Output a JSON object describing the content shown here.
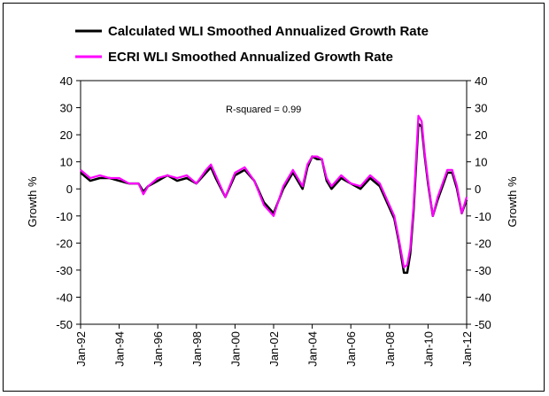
{
  "chart_data": {
    "type": "line",
    "title": "",
    "ylabel_left": "Growth %",
    "ylabel_right": "Growth %",
    "ylim": [
      -50,
      40
    ],
    "yticks": [
      -50,
      -40,
      -30,
      -20,
      -10,
      0,
      10,
      20,
      30,
      40
    ],
    "xlim": [
      1992.0,
      2012.0
    ],
    "xticks": [
      {
        "value": 1992,
        "label": "Jan-92"
      },
      {
        "value": 1994,
        "label": "Jan-94"
      },
      {
        "value": 1996,
        "label": "Jan-96"
      },
      {
        "value": 1998,
        "label": "Jan-98"
      },
      {
        "value": 2000,
        "label": "Jan-00"
      },
      {
        "value": 2002,
        "label": "Jan-02"
      },
      {
        "value": 2004,
        "label": "Jan-04"
      },
      {
        "value": 2006,
        "label": "Jan-06"
      },
      {
        "value": 2008,
        "label": "Jan-08"
      },
      {
        "value": 2010,
        "label": "Jan-10"
      },
      {
        "value": 2012,
        "label": "Jan-12"
      }
    ],
    "annotation": "R-squared = 0.99",
    "legend_placement": "top",
    "grid": false,
    "series": [
      {
        "name": "Calculated WLI Smoothed Annualized Growth Rate",
        "color": "#000000",
        "x": [
          1992.0,
          1992.5,
          1993.0,
          1993.5,
          1994.0,
          1994.5,
          1995.0,
          1995.25,
          1995.5,
          1996.0,
          1996.5,
          1997.0,
          1997.5,
          1998.0,
          1998.5,
          1998.75,
          1999.0,
          1999.5,
          2000.0,
          2000.5,
          2001.0,
          2001.5,
          2001.75,
          2002.0,
          2002.5,
          2003.0,
          2003.5,
          2003.75,
          2004.0,
          2004.25,
          2004.5,
          2004.75,
          2005.0,
          2005.5,
          2006.0,
          2006.5,
          2007.0,
          2007.5,
          2008.0,
          2008.25,
          2008.5,
          2008.75,
          2008.92,
          2009.08,
          2009.25,
          2009.5,
          2009.67,
          2009.83,
          2010.0,
          2010.25,
          2010.5,
          2010.75,
          2011.0,
          2011.25,
          2011.5,
          2011.75,
          2012.0
        ],
        "y": [
          6,
          3,
          4,
          4,
          3,
          2,
          2,
          -1,
          1,
          3,
          5,
          3,
          4,
          2,
          6,
          8,
          4,
          -3,
          5,
          7,
          3,
          -5,
          -7,
          -9,
          0,
          6,
          0,
          8,
          12,
          11,
          11,
          3,
          0,
          4,
          2,
          0,
          4,
          1,
          -7,
          -11,
          -20,
          -31,
          -31,
          -24,
          -8,
          24,
          23,
          12,
          2,
          -10,
          -4,
          1,
          6,
          6,
          0,
          -9,
          -4
        ]
      },
      {
        "name": "ECRI WLI Smoothed Annualized Growth Rate",
        "color": "#ff00ff",
        "x": [
          1992.0,
          1992.5,
          1993.0,
          1993.5,
          1994.0,
          1994.5,
          1995.0,
          1995.25,
          1995.5,
          1996.0,
          1996.5,
          1997.0,
          1997.5,
          1998.0,
          1998.5,
          1998.75,
          1999.0,
          1999.5,
          2000.0,
          2000.5,
          2001.0,
          2001.5,
          2001.75,
          2002.0,
          2002.5,
          2003.0,
          2003.5,
          2003.75,
          2004.0,
          2004.25,
          2004.5,
          2004.75,
          2005.0,
          2005.5,
          2006.0,
          2006.5,
          2007.0,
          2007.5,
          2008.0,
          2008.25,
          2008.5,
          2008.75,
          2008.92,
          2009.08,
          2009.25,
          2009.5,
          2009.67,
          2009.83,
          2010.0,
          2010.25,
          2010.5,
          2010.75,
          2011.0,
          2011.25,
          2011.5,
          2011.75,
          2012.0
        ],
        "y": [
          7,
          4,
          5,
          4,
          4,
          2,
          2,
          -2,
          1,
          4,
          5,
          4,
          5,
          2,
          7,
          9,
          5,
          -3,
          6,
          8,
          3,
          -6,
          -8,
          -10,
          1,
          7,
          1,
          9,
          12,
          12,
          11,
          4,
          1,
          5,
          2,
          1,
          5,
          2,
          -6,
          -10,
          -19,
          -29,
          -28,
          -22,
          -6,
          27,
          25,
          13,
          3,
          -10,
          -3,
          2,
          7,
          7,
          1,
          -9,
          -3
        ]
      }
    ]
  }
}
